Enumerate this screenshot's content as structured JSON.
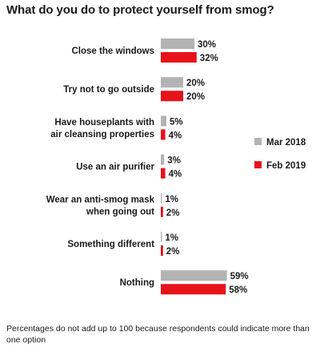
{
  "title": "What do you do to protect yourself from smog?",
  "footnote": "Percentages do not add up to 100 because respondents could indicate more than one option",
  "chart_data": {
    "type": "bar",
    "orientation": "horizontal",
    "categories": [
      [
        "Close the windows"
      ],
      [
        "Try not to go outside"
      ],
      [
        "Have houseplants with",
        "air cleansing properties"
      ],
      [
        "Use an air purifier"
      ],
      [
        "Wear an anti-smog mask",
        "when going out"
      ],
      [
        "Something different"
      ],
      [
        "Nothing"
      ]
    ],
    "series": [
      {
        "name": "Mar 2018",
        "color": "#b3b3b3",
        "values": [
          30,
          20,
          5,
          3,
          1,
          1,
          59
        ],
        "labels": [
          "30%",
          "20%",
          "5%",
          "3%",
          "1%",
          "1%",
          "59%"
        ]
      },
      {
        "name": "Feb 2019",
        "color": "#e8121b",
        "values": [
          32,
          20,
          4,
          4,
          2,
          2,
          58
        ],
        "labels": [
          "32%",
          "20%",
          "4%",
          "4%",
          "2%",
          "2%",
          "58%"
        ]
      }
    ],
    "legend_position": "right",
    "xlim": [
      0,
      100
    ],
    "grid": false
  }
}
